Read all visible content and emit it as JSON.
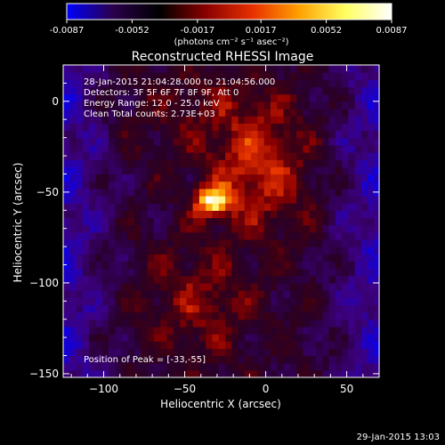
{
  "colorbar": {
    "tick_labels": [
      "-0.0087",
      "-0.0052",
      "-0.0017",
      "0.0017",
      "0.0052",
      "0.0087"
    ],
    "tick_values": [
      -0.0087,
      -0.0052,
      -0.0017,
      0.0017,
      0.0052,
      0.0087
    ],
    "range": [
      -0.0087,
      0.0087
    ],
    "unit_label": "(photons cm⁻² s⁻¹ asec⁻²)",
    "colormap": [
      "#0000ff",
      "#2a004a",
      "#000000",
      "#8a0000",
      "#e83000",
      "#ffa000",
      "#ffff60",
      "#ffffff"
    ]
  },
  "chart_data": {
    "type": "heatmap",
    "title": "Reconstructed RHESSI Image",
    "xlabel": "Heliocentric X (arcsec)",
    "ylabel": "Heliocentric Y (arcsec)",
    "xlim": [
      -125,
      70
    ],
    "ylim": [
      -152,
      20
    ],
    "xticks": [
      -100,
      -50,
      0,
      50
    ],
    "yticks": [
      0,
      -50,
      -100,
      -150
    ],
    "xtick_labels": [
      "−100",
      "−50",
      "0",
      "50"
    ],
    "ytick_labels": [
      "0",
      "−50",
      "−100",
      "−150"
    ],
    "annotations": [
      "28-Jan-2015 21:04:28.000 to 21:04:56.000",
      "Detectors: 3F 5F 6F 7F 8F 9F, Att 0",
      "Energy Range: 12.0 - 25.0 keV",
      "Clean     Total counts: 2.73E+03"
    ],
    "peak_label": "Position of Peak = [-33,-55]",
    "peak": {
      "x": -33,
      "y": -55
    },
    "timestamp": "29-Jan-2015 13:03"
  }
}
